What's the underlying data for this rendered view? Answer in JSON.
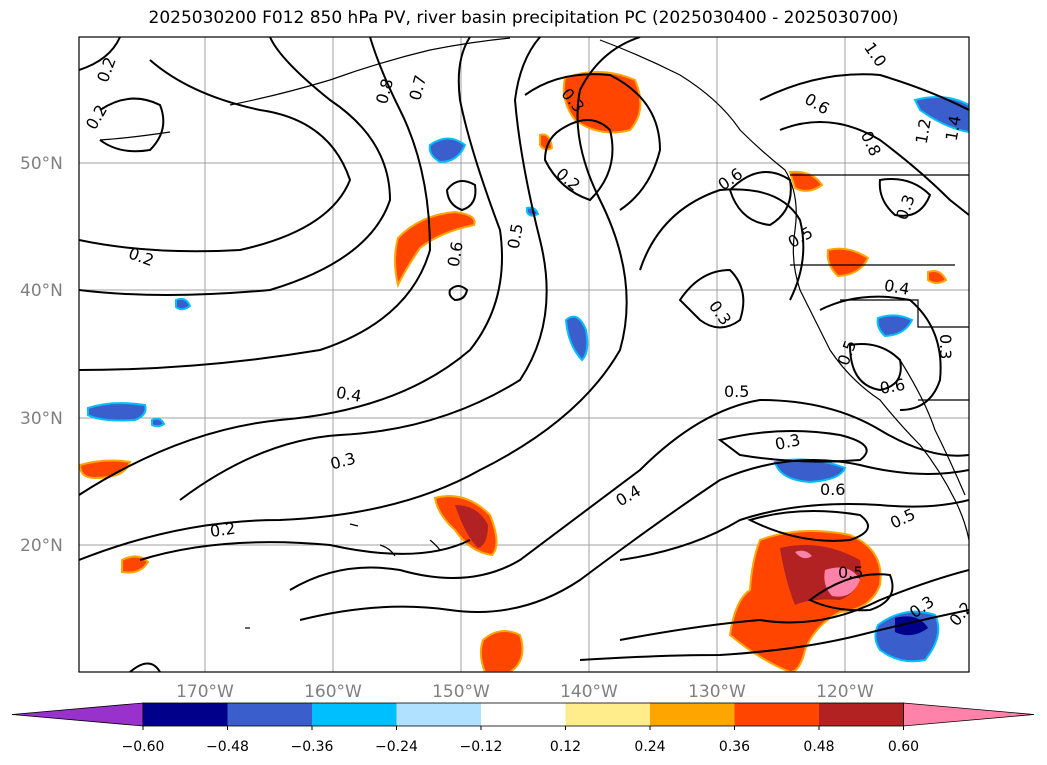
{
  "title": "2025030200 F012 850 hPa PV, river basin precipitation PC (2025030400 - 2025030700)",
  "map": {
    "lat_labels": [
      "50°N",
      "40°N",
      "30°N",
      "20°N"
    ],
    "lon_labels": [
      "170°W",
      "160°W",
      "150°W",
      "140°W",
      "130°W",
      "120°W"
    ],
    "contour_labels": [
      "0.2",
      "0.2",
      "0.2",
      "0.2",
      "0.8",
      "0.7",
      "1.0",
      "1.2",
      "1.4",
      "0.6",
      "0.8",
      "0.3",
      "0.2",
      "0.6",
      "0.5",
      "0.6",
      "0.5",
      "0.4",
      "0.3",
      "0.5",
      "0.6",
      "0.4",
      "0.3",
      "0.5",
      "0.3",
      "0.6",
      "0.4",
      "0.5",
      "0.5",
      "0.3",
      "0.2",
      "0.3",
      "0.3"
    ]
  },
  "colorbar": {
    "colors": [
      "#9932cc",
      "#00008b",
      "#3a5fcd",
      "#00bfff",
      "#b0e2ff",
      "#ffffff",
      "#ffec8b",
      "#ffa500",
      "#ff4500",
      "#b22222",
      "#ff82ab"
    ],
    "ticks": [
      "−0.60",
      "−0.48",
      "−0.36",
      "−0.24",
      "−0.12",
      "0.12",
      "0.24",
      "0.36",
      "0.48",
      "0.60"
    ]
  }
}
